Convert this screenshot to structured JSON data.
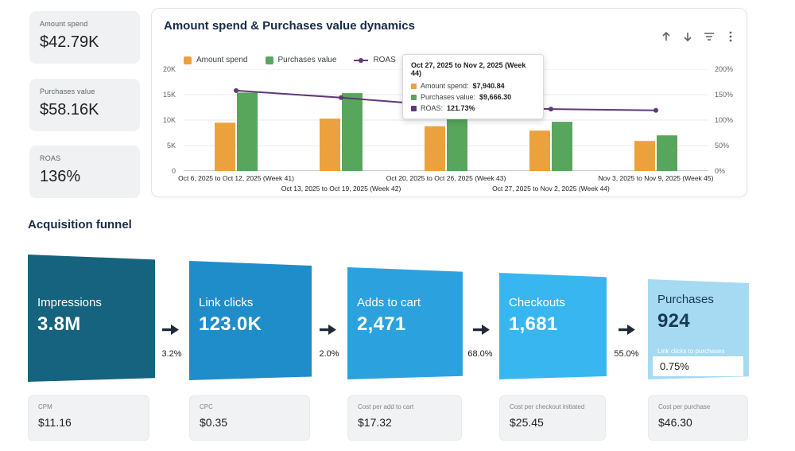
{
  "kpis": [
    {
      "label": "Amount spend",
      "value": "$42.79K"
    },
    {
      "label": "Purchases value",
      "value": "$58.16K"
    },
    {
      "label": "ROAS",
      "value": "136%"
    }
  ],
  "chart": {
    "title": "Amount spend & Purchases value dynamics",
    "legend": [
      {
        "label": "Amount spend",
        "color": "#eba23d"
      },
      {
        "label": "Purchases value",
        "color": "#58a55c"
      },
      {
        "label": "ROAS",
        "color": "#5e3a78"
      }
    ],
    "tooltip": {
      "title": "Oct 27, 2025 to Nov 2, 2025 (Week 44)",
      "rows": [
        {
          "label": "Amount spend:",
          "value": "$7,940.84",
          "color": "#eba23d"
        },
        {
          "label": "Purchases value:",
          "value": "$9,666.30",
          "color": "#58a55c"
        },
        {
          "label": "ROAS:",
          "value": "121.73%",
          "color": "#5e3a78"
        }
      ]
    }
  },
  "chart_data": {
    "type": "bar",
    "categories": [
      "Oct 6, 2025 to Oct 12, 2025 (Week 41)",
      "Oct 13, 2025 to Oct 19, 2025 (Week 42)",
      "Oct 20, 2025 to Oct 26, 2025 (Week 43)",
      "Oct 27, 2025 to Nov 2, 2025 (Week 44)",
      "Nov 3, 2025 to Nov 9, 2025 (Week 45)"
    ],
    "series": [
      {
        "name": "Amount spend",
        "type": "bar",
        "axis": "left",
        "color": "#eba23d",
        "values": [
          9500,
          10300,
          8800,
          7941,
          5900
        ]
      },
      {
        "name": "Purchases value",
        "type": "bar",
        "axis": "left",
        "color": "#58a55c",
        "values": [
          15400,
          15300,
          11600,
          9666,
          7000
        ]
      },
      {
        "name": "ROAS",
        "type": "line",
        "axis": "right",
        "color": "#5e3a78",
        "values": [
          158,
          144,
          128,
          121.73,
          119
        ]
      }
    ],
    "left_axis": {
      "ticks": [
        "0",
        "5K",
        "10K",
        "15K",
        "20K"
      ],
      "min": 0,
      "max": 20000
    },
    "right_axis": {
      "ticks": [
        "0%",
        "50%",
        "100%",
        "150%",
        "200%"
      ],
      "min": 0,
      "max": 200
    },
    "grid": true,
    "legend_position": "top"
  },
  "icons": {
    "chart_toolbar": [
      "arrow-up-icon",
      "arrow-down-icon",
      "filter-icon",
      "kebab-menu-icon"
    ],
    "funnel_connector": "arrow-right-icon"
  },
  "funnel": {
    "title": "Acquisition funnel",
    "steps": [
      {
        "label": "Impressions",
        "value": "3.8M",
        "color": "#15637e"
      },
      {
        "label": "Link clicks",
        "value": "123.0K",
        "color": "#1f8dc9"
      },
      {
        "label": "Adds to cart",
        "value": "2,471",
        "color": "#2ba2de"
      },
      {
        "label": "Checkouts",
        "value": "1,681",
        "color": "#38b6f0"
      },
      {
        "label": "Purchases",
        "value": "924",
        "color": "#a5daf2",
        "extra_label": "Link clicks to purchases",
        "extra_value": "0.75%"
      }
    ],
    "conversions": [
      "3.2%",
      "2.0%",
      "68.0%",
      "55.0%"
    ]
  },
  "cost_cards": [
    {
      "label": "CPM",
      "value": "$11.16"
    },
    {
      "label": "CPC",
      "value": "$0.35"
    },
    {
      "label": "Cost per add to cart",
      "value": "$17.32"
    },
    {
      "label": "Cost per checkout initiated",
      "value": "$25.45"
    },
    {
      "label": "Cost per purchase",
      "value": "$46.30"
    }
  ]
}
